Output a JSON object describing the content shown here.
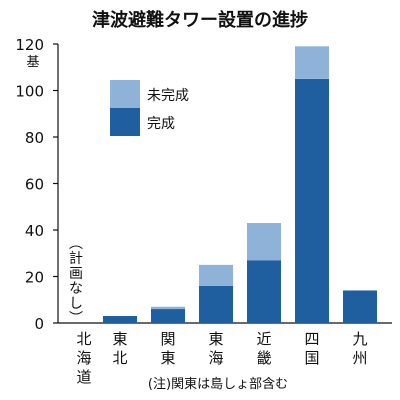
{
  "chart_data": {
    "type": "bar",
    "stacked": true,
    "title": "津波避難タワー設置の進捗",
    "ylabel": "基",
    "ylim": [
      0,
      120
    ],
    "yticks": [
      0,
      20,
      40,
      60,
      80,
      100,
      120
    ],
    "grid": false,
    "legend_position": "top-left",
    "categories": [
      "北海道",
      "東北",
      "関東",
      "東海",
      "近畿",
      "四国",
      "九州"
    ],
    "series": [
      {
        "name": "完成",
        "color": "#1f5fa0",
        "values": [
          0,
          3,
          6,
          16,
          27,
          105,
          14
        ]
      },
      {
        "name": "未完成",
        "color": "#8fb3d8",
        "values": [
          0,
          0,
          1,
          9,
          16,
          14,
          0
        ]
      }
    ],
    "annotations": {
      "hokkaido_note": "(計画なし)",
      "footnote": "(注)関東は島しょ部含む"
    }
  }
}
